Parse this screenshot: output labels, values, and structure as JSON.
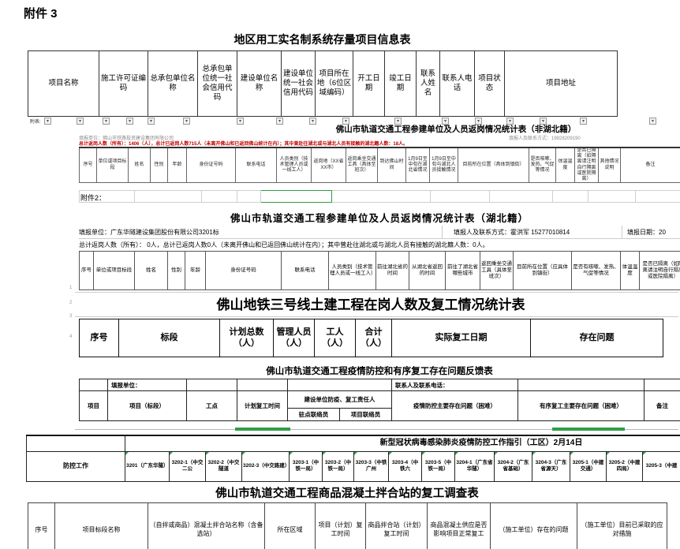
{
  "page": {
    "attachment3_label": "附件 3",
    "attachment2_label": "附件2："
  },
  "colors": {
    "alert_red": "#c00000",
    "excel_green": "#2e9e46"
  },
  "filter_row": {
    "label": "附表:"
  },
  "table1": {
    "title": "地区用工实名制系统存量项目信息表",
    "headers": [
      "项目名称",
      "施工许可证编码",
      "总承包单位名称",
      "总承包单位统一社会信用代码",
      "建设单位名称",
      "建设单位统一社会信用代码",
      "项目所在地（6位区域编码）",
      "开工日期",
      "竣工日期",
      "联系人姓名",
      "联系人电话",
      "项目状态",
      "项目地址"
    ]
  },
  "table_nonhubei": {
    "title": "佛山市轨道交通工程参建单位及人员返岗情况统计表（非湖北籍）",
    "report_unit": "填报单位：佛山市铁路投资建设集团有限公司",
    "reporter": "填报人及联系方式：19928209190",
    "summary": "总计返岗人数（所有）：1406（人），总计已返岗人数715人（未离开佛山和已返回佛山统计在内）；其中曾赴往湖北或与湖北人员有接触的湖北籍人数：18人。",
    "headers": [
      "序号",
      "单位或项目标段",
      "姓名",
      "性别",
      "年龄",
      "身份证号码",
      "联系电话",
      "人员类别（技术管理人员或一线工人）",
      "返岗地（XX省XX市）",
      "返岗乘坐交通工具（具体至班次）",
      "到达佛山时间",
      "1月9日至中旬在湖北省情况",
      "1月9日至中旬与湖北人员接触情况",
      "目前所在位置（具体到镇街）",
      "是否咳嗽、发热、气促等情况",
      "体温温度",
      "是否已隔离（如隔离请注明自行隔离或医院隔离）",
      "其他情况说明",
      "备注"
    ]
  },
  "table_hubei": {
    "title": "佛山市轨道交通工程参建单位及人员返岗情况统计表（湖北籍）",
    "report_unit": "填报单位：广东华隧建设集团股份有限公司3201标",
    "reporter": "填报人及联系方式：霍洪军  15277010814",
    "report_date": "填报日期：20",
    "summary": "总计返岗人数（所有）： 0人，总计已返岗人数0人（未离开佛山和已返回佛山统计在内）；其中曾赴往湖北或与湖北人员有接触的湖北籍人数：0人。",
    "headers": [
      "序号",
      "单位或项目标段",
      "姓名",
      "性别",
      "年龄",
      "身份证号码",
      "联系电话",
      "人员类别（技术管理人员或一线工人）",
      "前往湖北省的时间",
      "从湖北省返回的时间",
      "前往了湖北省哪些城市",
      "返回乘坐交通工具（具体至班次）",
      "目前所在位置（应具体到镇街）",
      "是否有咳嗽、发热、气促等情况",
      "体温温度",
      "是否已隔离（如隔离请注明自行隔离或医院隔离）"
    ]
  },
  "table_line3": {
    "title": "佛山地铁三号线土建工程在岗人数及复工情况统计表",
    "headers": [
      "序号",
      "标段",
      "计划总数（人）",
      "管理人员（人）",
      "工人（人）",
      "合计（人）",
      "实际复工日期",
      "存在问题"
    ],
    "row_numbers": [
      "1",
      "2",
      "3",
      "4"
    ]
  },
  "table_feedback": {
    "title": "佛山市轨道交通工程疫情防控和有序复工存在问题反馈表",
    "report_unit_label": "填报单位：",
    "contact_label": "联系人及联系电话：",
    "headers": {
      "main": [
        "项目",
        "项目（标段）",
        "工点",
        "计划复工时间"
      ],
      "group": "建设单位防疫、复工责任人",
      "sub": [
        "驻点联络员",
        "项目联络员"
      ],
      "tail": [
        "疫情防控主要存在问题（困难）",
        "有序复工主要存在问题（困难）",
        "备注"
      ]
    }
  },
  "table_guideline": {
    "title": "新型冠状病毒感染肺炎疫情防控工作指引（工区）2月14日",
    "row_label": "防控工作",
    "columns": [
      "3201（广东华隧）",
      "3202-1（中交二公",
      "3202-2（中交隧道",
      "3202-3（中交路建）",
      "3203-1（中铁一局）",
      "3203-2（中铁一局）",
      "3203-3（中铁广州",
      "3203-4（中铁六",
      "3203-5（中铁一局）",
      "3204-1（广东省华隧）",
      "3204-2（广东省基础）",
      "3204-3（广东省源天）",
      "3205-1（中建交通）",
      "3205-2（中建四局）",
      "3205-3（中建"
    ]
  },
  "table_concrete": {
    "title": "佛山市轨道交通工程商品混凝土拌合站的复工调查表",
    "headers": [
      "序号",
      "项目标段名称",
      "（自拌或商品）混凝土拌合站名称（含备选站）",
      "所在区域",
      "项目（计划）复工时间",
      "商品拌合站（计划）复工时间",
      "商品混凝土供应是否影响项目正常复工",
      "（施工单位）存在的问题",
      "（施工单位）目前已采取的应对措施"
    ]
  }
}
